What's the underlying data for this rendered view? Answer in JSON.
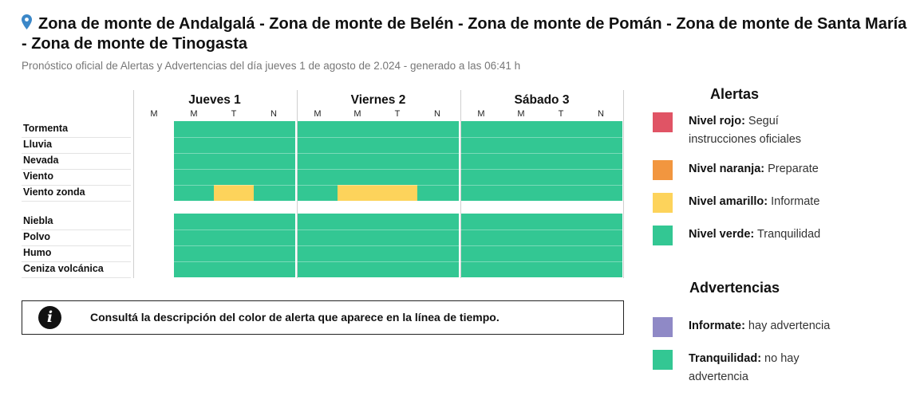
{
  "header": {
    "title": "Zona de monte de Andalgalá - Zona de monte de Belén - Zona de monte de Pomán - Zona de monte de Santa María - Zona de monte de Tinogasta",
    "subtitle": "Pronóstico oficial de Alertas y Advertencias del día jueves 1 de agosto de 2.024 - generado a las 06:41 h",
    "icon": "location-pin-icon"
  },
  "colors": {
    "rojo": "#e05465",
    "naranja": "#f2963f",
    "amarillo": "#fdd35b",
    "verde": "#33c793",
    "violeta": "#8f89c6"
  },
  "timeline": {
    "days": [
      {
        "label": "Jueves 1",
        "slots": [
          "M",
          "M",
          "T",
          "N"
        ]
      },
      {
        "label": "Viernes 2",
        "slots": [
          "M",
          "M",
          "T",
          "N"
        ]
      },
      {
        "label": "Sábado 3",
        "slots": [
          "M",
          "M",
          "T",
          "N"
        ]
      }
    ],
    "alert_rows": [
      {
        "label": "Tormenta",
        "levels": [
          null,
          "verde",
          "verde",
          "verde",
          "verde",
          "verde",
          "verde",
          "verde",
          "verde",
          "verde",
          "verde",
          "verde"
        ]
      },
      {
        "label": "Lluvia",
        "levels": [
          null,
          "verde",
          "verde",
          "verde",
          "verde",
          "verde",
          "verde",
          "verde",
          "verde",
          "verde",
          "verde",
          "verde"
        ]
      },
      {
        "label": "Nevada",
        "levels": [
          null,
          "verde",
          "verde",
          "verde",
          "verde",
          "verde",
          "verde",
          "verde",
          "verde",
          "verde",
          "verde",
          "verde"
        ]
      },
      {
        "label": "Viento",
        "levels": [
          null,
          "verde",
          "verde",
          "verde",
          "verde",
          "verde",
          "verde",
          "verde",
          "verde",
          "verde",
          "verde",
          "verde"
        ]
      },
      {
        "label": "Viento zonda",
        "levels": [
          null,
          "verde",
          "amarillo",
          "verde",
          "verde",
          "amarillo",
          "amarillo",
          "verde",
          "verde",
          "verde",
          "verde",
          "verde"
        ]
      }
    ],
    "advisory_rows": [
      {
        "label": "Niebla",
        "levels": [
          null,
          "verde",
          "verde",
          "verde",
          "verde",
          "verde",
          "verde",
          "verde",
          "verde",
          "verde",
          "verde",
          "verde"
        ]
      },
      {
        "label": "Polvo",
        "levels": [
          null,
          "verde",
          "verde",
          "verde",
          "verde",
          "verde",
          "verde",
          "verde",
          "verde",
          "verde",
          "verde",
          "verde"
        ]
      },
      {
        "label": "Humo",
        "levels": [
          null,
          "verde",
          "verde",
          "verde",
          "verde",
          "verde",
          "verde",
          "verde",
          "verde",
          "verde",
          "verde",
          "verde"
        ]
      },
      {
        "label": "Ceniza volcánica",
        "levels": [
          null,
          "verde",
          "verde",
          "verde",
          "verde",
          "verde",
          "verde",
          "verde",
          "verde",
          "verde",
          "verde",
          "verde"
        ]
      }
    ]
  },
  "notice": {
    "icon": "info-icon",
    "text": "Consultá la descripción del color de alerta que aparece en la línea de tiempo."
  },
  "legend": {
    "alerts_title": "Alertas",
    "alerts": [
      {
        "level": "rojo",
        "name": "Nivel rojo:",
        "desc": "Seguí instrucciones oficiales"
      },
      {
        "level": "naranja",
        "name": "Nivel naranja:",
        "desc": "Preparate"
      },
      {
        "level": "amarillo",
        "name": "Nivel amarillo:",
        "desc": "Informate"
      },
      {
        "level": "verde",
        "name": "Nivel verde:",
        "desc": "Tranquilidad"
      }
    ],
    "advisories_title": "Advertencias",
    "advisories": [
      {
        "level": "violeta",
        "name": "Informate:",
        "desc": "hay advertencia"
      },
      {
        "level": "verde",
        "name": "Tranquilidad:",
        "desc": "no hay advertencia"
      }
    ]
  }
}
